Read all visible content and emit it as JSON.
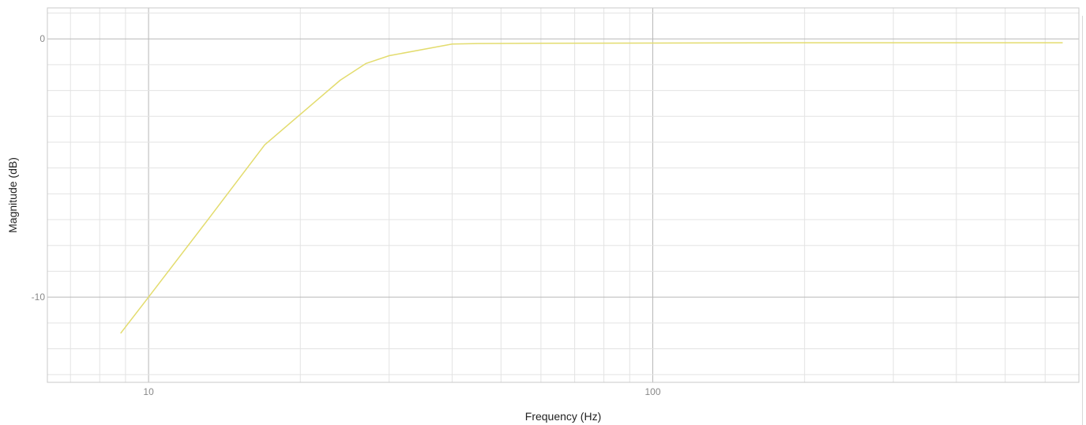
{
  "chart_data": {
    "type": "line",
    "xscale": "log",
    "xlabel": "Frequency (Hz)",
    "ylabel": "Magnitude (dB)",
    "xlim": [
      6.3,
      700
    ],
    "ylim": [
      -13.3,
      1.2
    ],
    "xticks": [
      10,
      100
    ],
    "xtick_labels": [
      "10",
      "100"
    ],
    "yticks": [
      0,
      -10
    ],
    "ytick_labels": [
      "0",
      "-10"
    ],
    "grid": true,
    "series": [
      {
        "color": "#e3dc6e",
        "x": [
          8.8,
          10,
          13,
          17,
          24,
          27,
          30,
          40,
          45,
          60,
          100,
          200,
          400,
          650
        ],
        "y": [
          -11.4,
          -10.0,
          -7.1,
          -4.1,
          -1.6,
          -0.95,
          -0.65,
          -0.2,
          -0.18,
          -0.17,
          -0.16,
          -0.15,
          -0.15,
          -0.15
        ]
      }
    ]
  }
}
